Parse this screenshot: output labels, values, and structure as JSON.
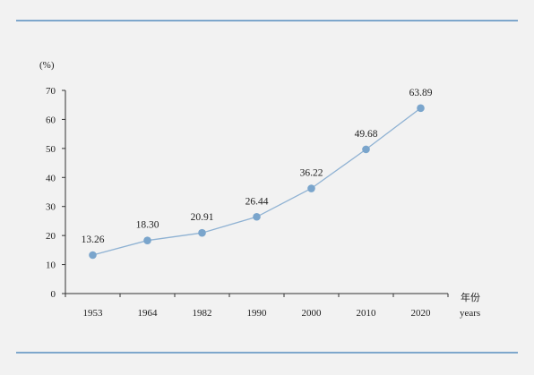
{
  "chart_data": {
    "type": "line",
    "title": "",
    "y_unit": "(%)",
    "x_unit_cn": "年份",
    "x_unit_en": "years",
    "categories": [
      "1953",
      "1964",
      "1982",
      "1990",
      "2000",
      "2010",
      "2020"
    ],
    "series": [
      {
        "values": [
          13.26,
          18.3,
          20.91,
          26.44,
          36.22,
          49.68,
          63.89
        ]
      }
    ],
    "data_labels": [
      "13.26",
      "18.30",
      "20.91",
      "26.44",
      "36.22",
      "49.68",
      "63.89"
    ],
    "ylim": [
      0,
      70
    ],
    "yticks": [
      "0",
      "10",
      "20",
      "30",
      "40",
      "50",
      "60",
      "70"
    ],
    "grid": false,
    "colors": {
      "line": "#8fb2d3",
      "marker": "#7aa5cc",
      "rule": "#7ea7cc"
    }
  }
}
